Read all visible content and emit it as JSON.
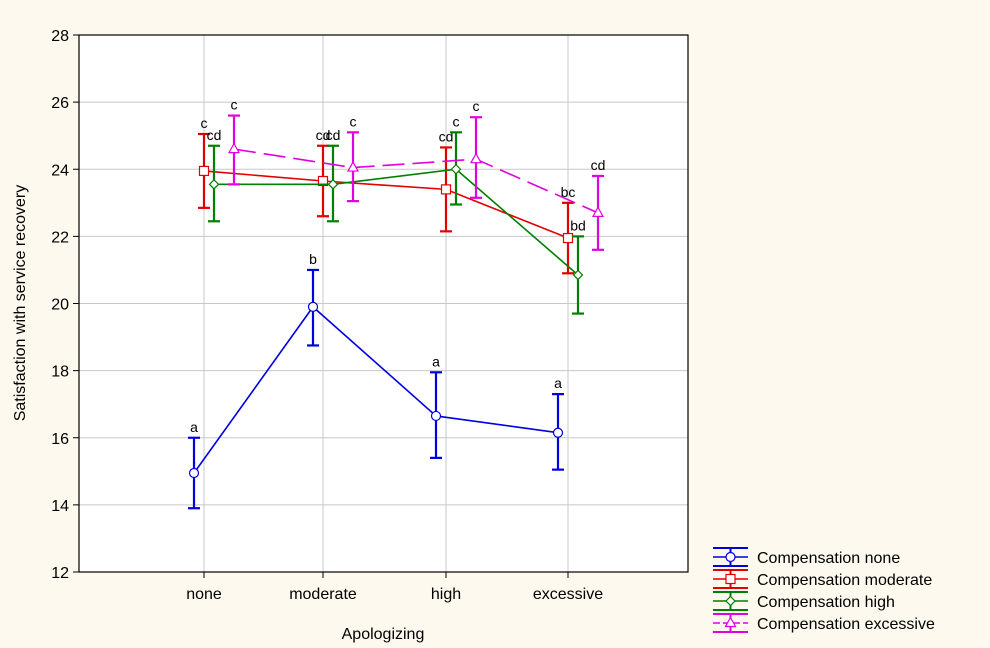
{
  "chart_data": {
    "type": "line",
    "title": "",
    "xlabel": "Apologizing",
    "ylabel": "Satisfaction with service recovery",
    "categories": [
      "none",
      "moderate",
      "high",
      "excessive"
    ],
    "ylim": [
      12,
      28
    ],
    "yticks": [
      12,
      14,
      16,
      18,
      20,
      22,
      24,
      26,
      28
    ],
    "grid": true,
    "legend_position": "bottom-right",
    "error_bars": true,
    "series": [
      {
        "name": "Compensation none",
        "color": "#0000e0",
        "marker": "circle",
        "dashed": false,
        "values": [
          14.95,
          19.9,
          16.65,
          16.15
        ],
        "lower": [
          13.9,
          18.75,
          15.4,
          15.05
        ],
        "upper": [
          16.0,
          21.0,
          17.95,
          17.3
        ],
        "labels": [
          "a",
          "b",
          "a",
          "a"
        ]
      },
      {
        "name": "Compensation moderate",
        "color": "#e00000",
        "marker": "square",
        "dashed": false,
        "values": [
          23.95,
          23.65,
          23.4,
          21.95
        ],
        "lower": [
          22.85,
          22.6,
          22.15,
          20.9
        ],
        "upper": [
          25.05,
          24.7,
          24.65,
          23.0
        ],
        "labels": [
          "c",
          "cd",
          "cd",
          "bc"
        ]
      },
      {
        "name": "Compensation high",
        "color": "#008000",
        "marker": "diamond",
        "dashed": false,
        "values": [
          23.55,
          23.55,
          24.0,
          20.85
        ],
        "lower": [
          22.45,
          22.45,
          22.95,
          19.7
        ],
        "upper": [
          24.7,
          24.7,
          25.1,
          22.0
        ],
        "labels": [
          "cd",
          "cd",
          "c",
          "bd"
        ]
      },
      {
        "name": "Compensation excessive",
        "color": "#e000e0",
        "marker": "triangle",
        "dashed": true,
        "values": [
          24.6,
          24.05,
          24.3,
          22.7
        ],
        "lower": [
          23.55,
          23.05,
          23.15,
          21.6
        ],
        "upper": [
          25.6,
          25.1,
          25.55,
          23.8
        ],
        "labels": [
          "c",
          "c",
          "c",
          "cd"
        ]
      }
    ]
  }
}
